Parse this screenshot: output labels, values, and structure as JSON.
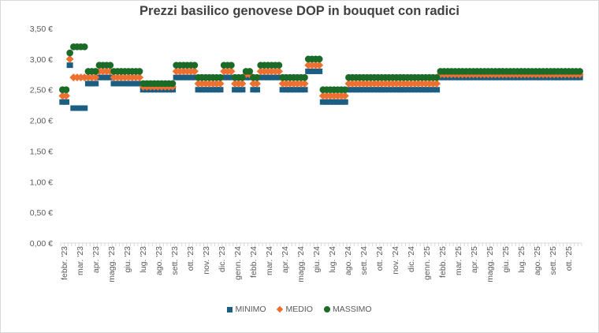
{
  "chart_data": {
    "type": "scatter",
    "title": "Prezzi basilico genovese DOP in bouquet con radici",
    "ylim": [
      0,
      3.5
    ],
    "y_ticks": [
      "0,00 €",
      "0,50 €",
      "1,00 €",
      "1,50 €",
      "2,00 €",
      "2,50 €",
      "3,00 €",
      "3,50 €"
    ],
    "x_tick_labels": [
      "febbr. '23",
      "mar. '23",
      "apr. '23",
      "magg. '23",
      "giu. '23",
      "lug. '23",
      "ago. '23",
      "sett. '23",
      "ott. '23",
      "nov. '23",
      "dic. '23",
      "genn. '24",
      "febb. '24",
      "mar. '24",
      "apr. '24",
      "magg. '24",
      "giu. '24",
      "lug. '24",
      "ago. '24",
      "sett. '24",
      "ott. '24",
      "nov. '24",
      "dic. '24",
      "genn. '25",
      "febb. '25",
      "mar. '25",
      "apr. '25",
      "magg. '25",
      "giu. '25",
      "lug. '25",
      "ago. '25",
      "sett. '25",
      "ott. '25"
    ],
    "grid": false,
    "legend": "bottom",
    "series": [
      {
        "name": "MINIMO",
        "color": "#1b5e82",
        "marker": "square",
        "values": [
          2.3,
          2.3,
          2.9,
          2.2,
          2.2,
          2.2,
          2.2,
          2.6,
          2.6,
          2.6,
          2.7,
          2.7,
          2.7,
          2.7,
          2.6,
          2.6,
          2.6,
          2.6,
          2.6,
          2.6,
          2.6,
          2.6,
          2.5,
          2.5,
          2.5,
          2.5,
          2.5,
          2.5,
          2.5,
          2.5,
          2.5,
          2.7,
          2.7,
          2.7,
          2.7,
          2.7,
          2.7,
          2.5,
          2.5,
          2.5,
          2.5,
          2.5,
          2.5,
          2.5,
          2.7,
          2.7,
          2.7,
          2.5,
          2.5,
          2.5,
          2.7,
          2.7,
          2.5,
          2.5,
          2.7,
          2.7,
          2.7,
          2.7,
          2.7,
          2.7,
          2.5,
          2.5,
          2.5,
          2.5,
          2.5,
          2.5,
          2.5,
          2.8,
          2.8,
          2.8,
          2.8,
          2.3,
          2.3,
          2.3,
          2.3,
          2.3,
          2.3,
          2.3,
          2.5,
          2.5,
          2.5,
          2.5,
          2.5,
          2.5,
          2.5,
          2.5,
          2.5,
          2.5,
          2.5,
          2.5,
          2.5,
          2.5,
          2.5,
          2.5,
          2.5,
          2.5,
          2.5,
          2.5,
          2.5,
          2.5,
          2.5,
          2.5,
          2.5,
          2.7,
          2.7,
          2.7,
          2.7,
          2.7,
          2.7,
          2.7,
          2.7,
          2.7,
          2.7,
          2.7,
          2.7,
          2.7,
          2.7,
          2.7,
          2.7,
          2.7,
          2.7,
          2.7,
          2.7,
          2.7,
          2.7,
          2.7,
          2.7,
          2.7,
          2.7,
          2.7,
          2.7,
          2.7,
          2.7,
          2.7,
          2.7,
          2.7,
          2.7,
          2.7,
          2.7,
          2.7,
          2.7,
          2.7
        ]
      },
      {
        "name": "MEDIO",
        "color": "#ed7031",
        "marker": "diamond",
        "values": [
          2.4,
          2.4,
          3.0,
          2.7,
          2.7,
          2.7,
          2.7,
          2.7,
          2.7,
          2.7,
          2.8,
          2.8,
          2.8,
          2.8,
          2.7,
          2.7,
          2.7,
          2.7,
          2.7,
          2.7,
          2.7,
          2.7,
          2.55,
          2.55,
          2.55,
          2.55,
          2.55,
          2.55,
          2.55,
          2.55,
          2.55,
          2.8,
          2.8,
          2.8,
          2.8,
          2.8,
          2.8,
          2.6,
          2.6,
          2.6,
          2.6,
          2.6,
          2.6,
          2.6,
          2.8,
          2.8,
          2.8,
          2.6,
          2.6,
          2.6,
          2.75,
          2.75,
          2.6,
          2.6,
          2.8,
          2.8,
          2.8,
          2.8,
          2.8,
          2.8,
          2.6,
          2.6,
          2.6,
          2.6,
          2.6,
          2.6,
          2.6,
          2.9,
          2.9,
          2.9,
          2.9,
          2.4,
          2.4,
          2.4,
          2.4,
          2.4,
          2.4,
          2.4,
          2.6,
          2.6,
          2.6,
          2.6,
          2.6,
          2.6,
          2.6,
          2.6,
          2.6,
          2.6,
          2.6,
          2.6,
          2.6,
          2.6,
          2.6,
          2.6,
          2.6,
          2.6,
          2.6,
          2.6,
          2.6,
          2.6,
          2.6,
          2.6,
          2.6,
          2.75,
          2.75,
          2.75,
          2.75,
          2.75,
          2.75,
          2.75,
          2.75,
          2.75,
          2.75,
          2.75,
          2.75,
          2.75,
          2.75,
          2.75,
          2.75,
          2.75,
          2.75,
          2.75,
          2.75,
          2.75,
          2.75,
          2.75,
          2.75,
          2.75,
          2.75,
          2.75,
          2.75,
          2.75,
          2.75,
          2.75,
          2.75,
          2.75,
          2.75,
          2.75,
          2.75,
          2.75,
          2.75,
          2.75
        ]
      },
      {
        "name": "MASSIMO",
        "color": "#1a6a28",
        "marker": "circle",
        "values": [
          2.5,
          2.5,
          3.1,
          3.2,
          3.2,
          3.2,
          3.2,
          2.8,
          2.8,
          2.8,
          2.9,
          2.9,
          2.9,
          2.9,
          2.8,
          2.8,
          2.8,
          2.8,
          2.8,
          2.8,
          2.8,
          2.8,
          2.6,
          2.6,
          2.6,
          2.6,
          2.6,
          2.6,
          2.6,
          2.6,
          2.6,
          2.9,
          2.9,
          2.9,
          2.9,
          2.9,
          2.9,
          2.7,
          2.7,
          2.7,
          2.7,
          2.7,
          2.7,
          2.7,
          2.9,
          2.9,
          2.9,
          2.7,
          2.7,
          2.7,
          2.8,
          2.8,
          2.7,
          2.7,
          2.9,
          2.9,
          2.9,
          2.9,
          2.9,
          2.9,
          2.7,
          2.7,
          2.7,
          2.7,
          2.7,
          2.7,
          2.7,
          3.0,
          3.0,
          3.0,
          3.0,
          2.5,
          2.5,
          2.5,
          2.5,
          2.5,
          2.5,
          2.5,
          2.7,
          2.7,
          2.7,
          2.7,
          2.7,
          2.7,
          2.7,
          2.7,
          2.7,
          2.7,
          2.7,
          2.7,
          2.7,
          2.7,
          2.7,
          2.7,
          2.7,
          2.7,
          2.7,
          2.7,
          2.7,
          2.7,
          2.7,
          2.7,
          2.7,
          2.8,
          2.8,
          2.8,
          2.8,
          2.8,
          2.8,
          2.8,
          2.8,
          2.8,
          2.8,
          2.8,
          2.8,
          2.8,
          2.8,
          2.8,
          2.8,
          2.8,
          2.8,
          2.8,
          2.8,
          2.8,
          2.8,
          2.8,
          2.8,
          2.8,
          2.8,
          2.8,
          2.8,
          2.8,
          2.8,
          2.8,
          2.8,
          2.8,
          2.8,
          2.8,
          2.8,
          2.8,
          2.8,
          2.8
        ]
      }
    ]
  }
}
